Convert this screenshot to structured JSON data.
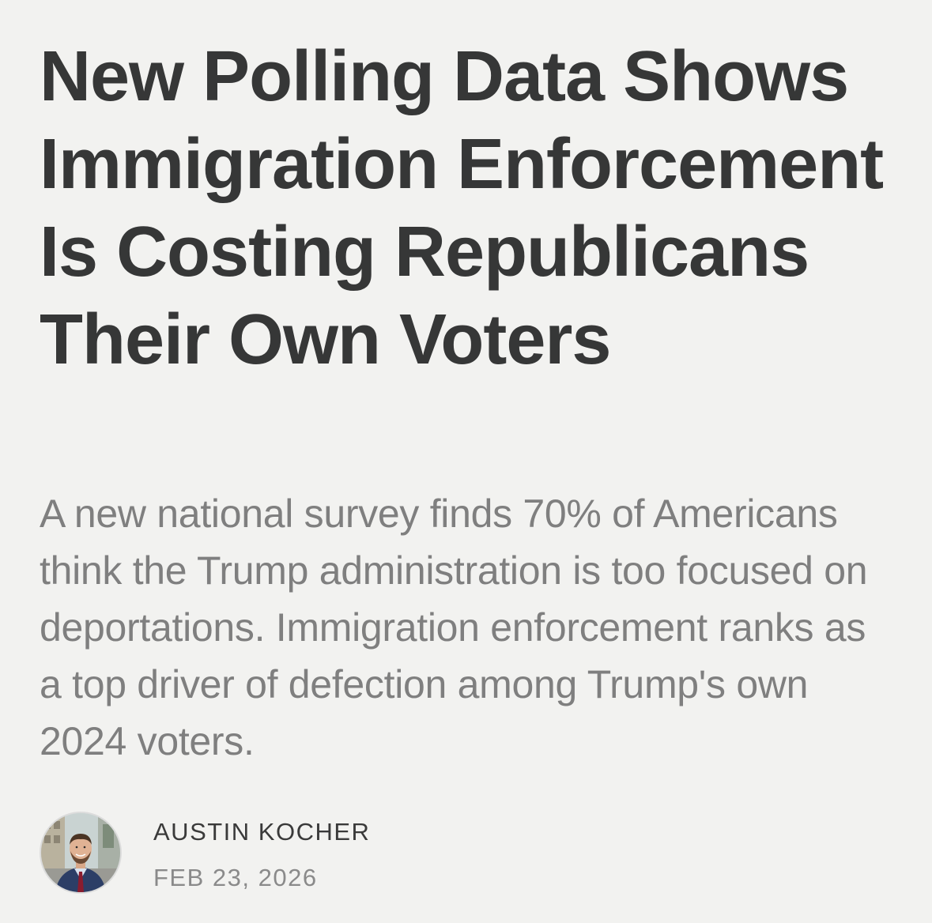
{
  "article": {
    "title": "New Polling Data Shows Immigration Enforcement Is Costing Republicans Their Own Voters",
    "subtitle": "A new national survey finds 70% of Americans think the Trump administration is too focused on deportations. Immigration enforcement ranks as a top driver of defection among Trump's own 2024 voters."
  },
  "byline": {
    "author": "AUSTIN KOCHER",
    "date": "FEB 23, 2026"
  }
}
